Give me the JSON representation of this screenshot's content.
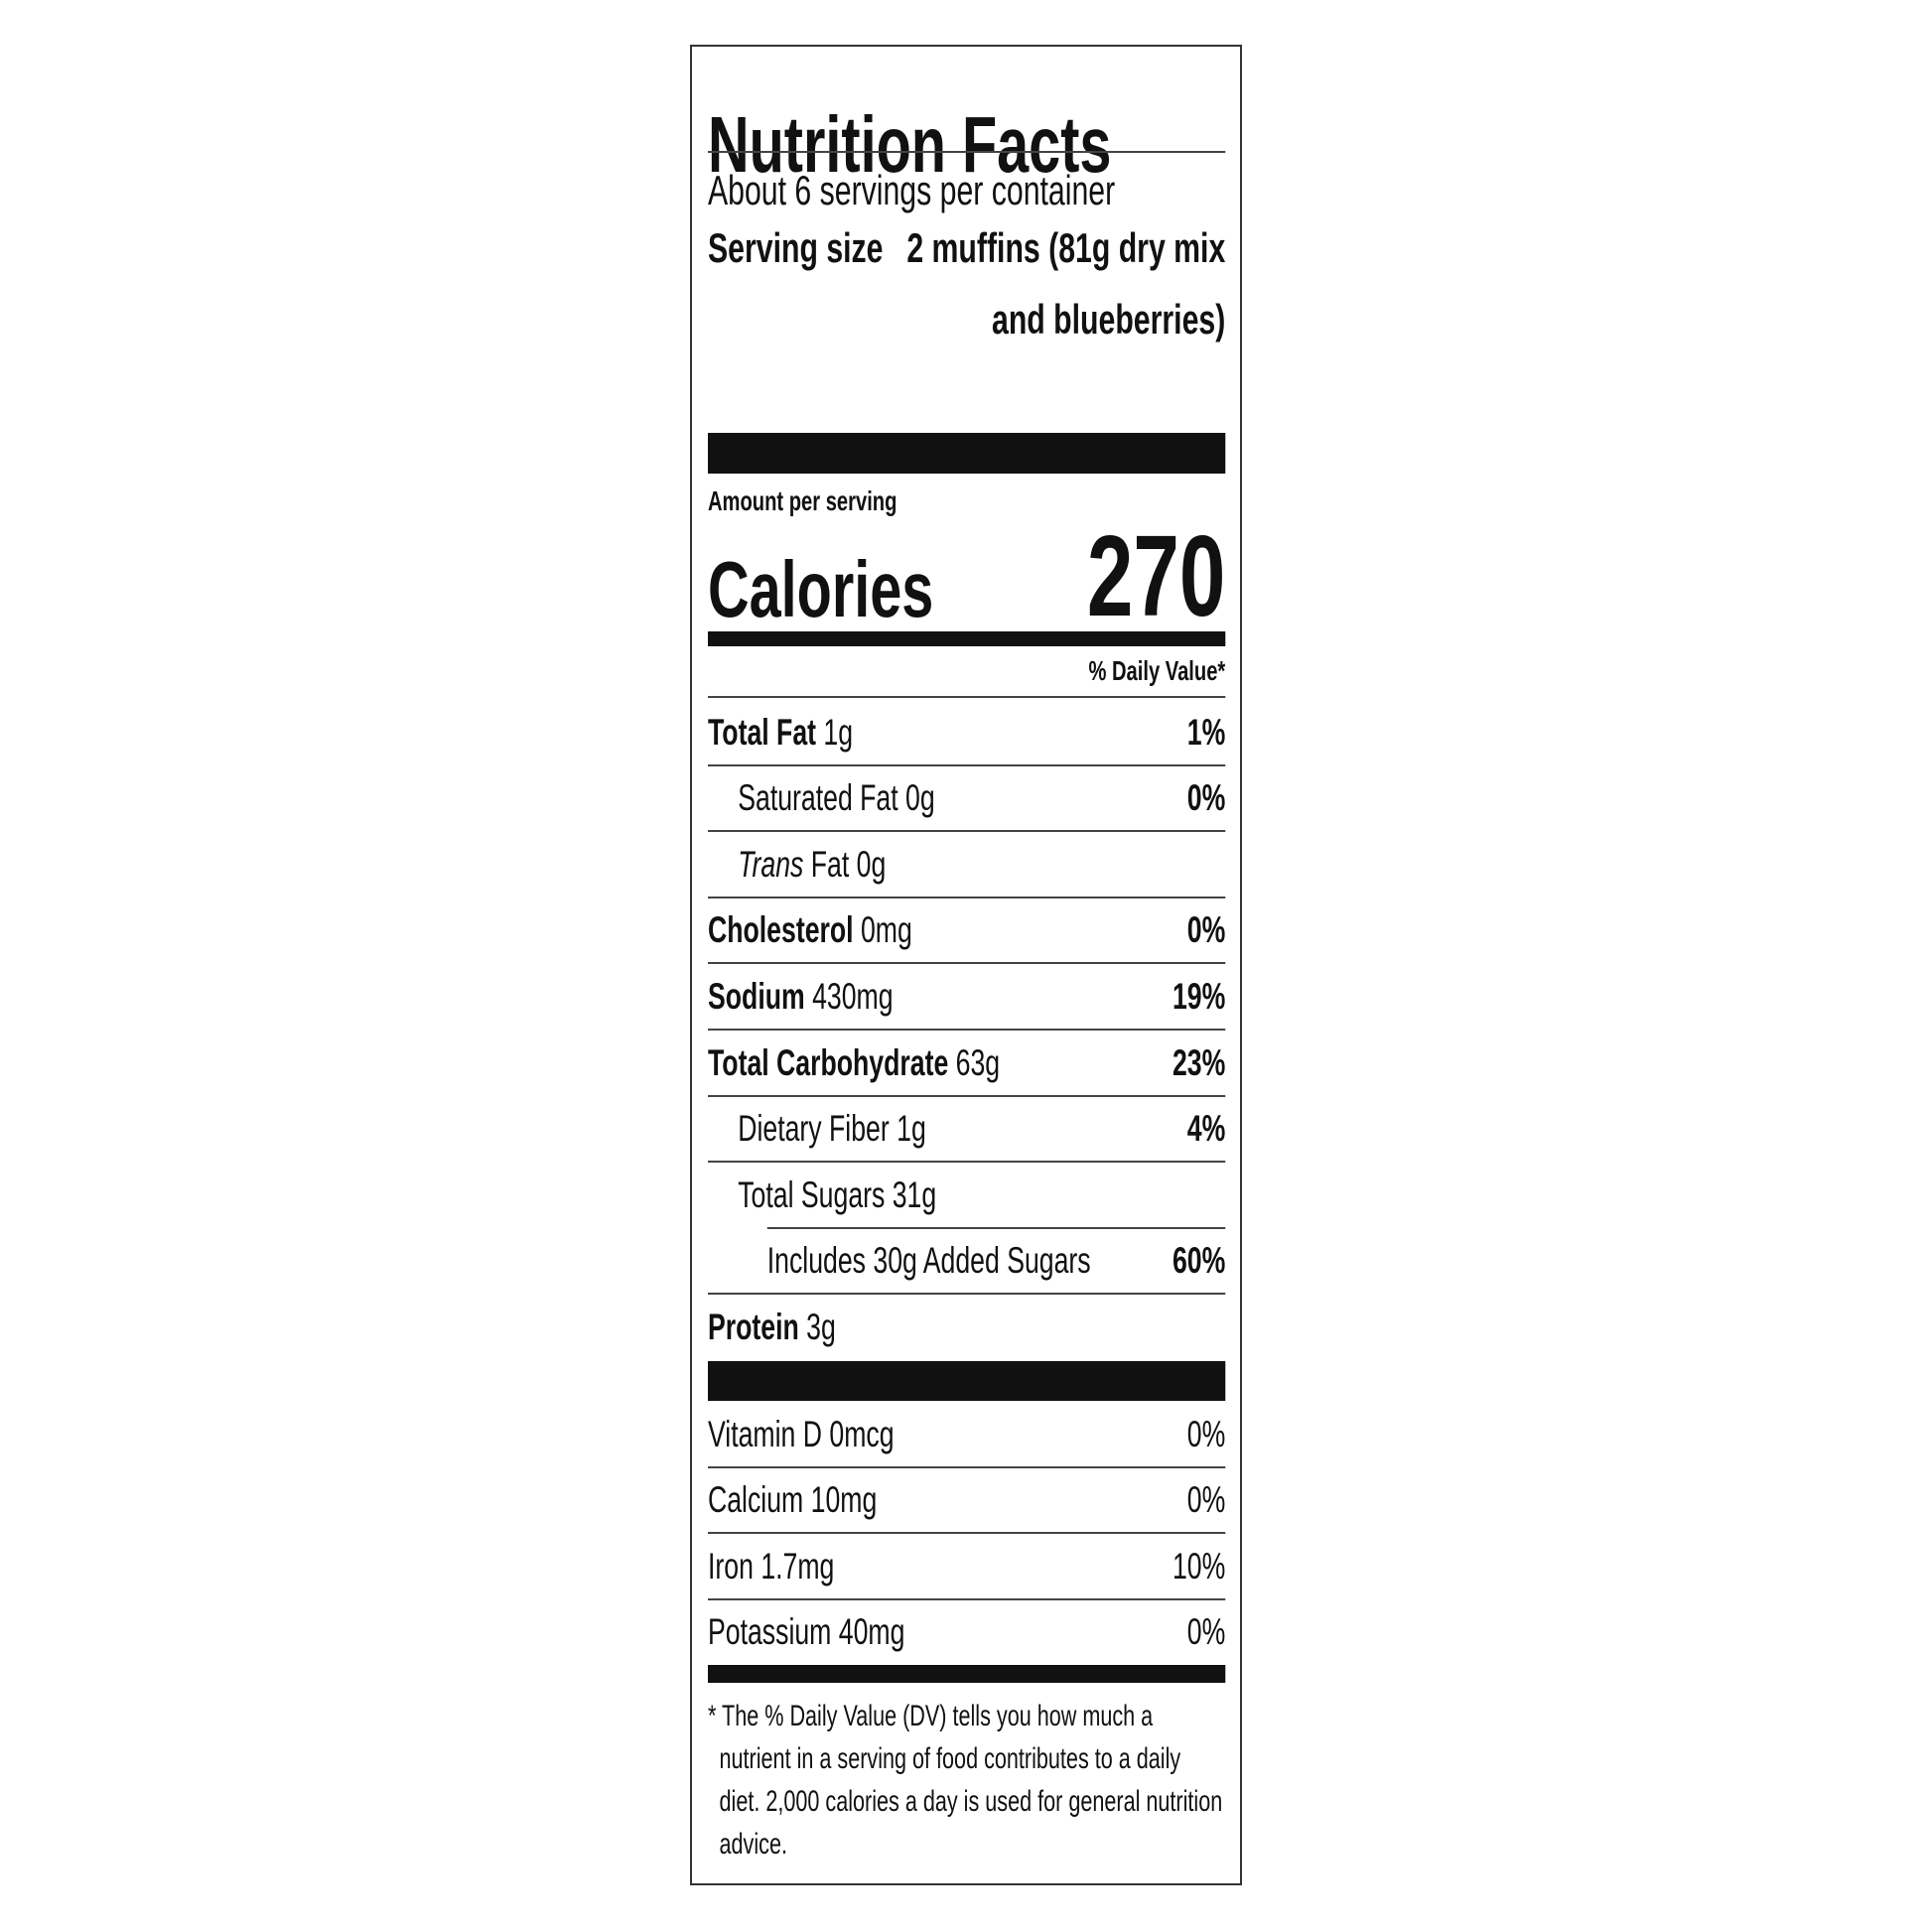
{
  "title": "Nutrition Facts",
  "servings": "About 6 servings per container",
  "serving_size": {
    "label": "Serving size",
    "value": "2 muffins (81g dry mix and blueberries)"
  },
  "amount_per_serving": "Amount per serving",
  "calories": {
    "label": "Calories",
    "value": 270
  },
  "daily_value_header": "% Daily Value*",
  "nutrients": [
    {
      "name": "Total Fat",
      "amount": "1g",
      "dv": "1%",
      "sub": [
        {
          "name": "Saturated Fat",
          "amount": "0g",
          "dv": "0%"
        },
        {
          "italic_prefix": "Trans",
          "name": "Fat",
          "amount": "0g"
        }
      ]
    },
    {
      "name": "Cholesterol",
      "amount": "0mg",
      "dv": "0%"
    },
    {
      "name": "Sodium",
      "amount": "430mg",
      "dv": "19%"
    },
    {
      "name": "Total Carbohydrate",
      "amount": "63g",
      "dv": "23%",
      "sub": [
        {
          "name": "Dietary Fiber",
          "amount": "1g",
          "dv": "4%"
        },
        {
          "name": "Total Sugars",
          "amount": "31g",
          "sub": [
            {
              "name": "Includes 30g Added Sugars",
              "dv": "60%"
            }
          ]
        }
      ]
    },
    {
      "name": "Protein",
      "amount": "3g"
    }
  ],
  "vitamins": [
    {
      "name": "Vitamin D",
      "amount": "0mcg",
      "dv": "0%"
    },
    {
      "name": "Calcium",
      "amount": "10mg",
      "dv": "0%"
    },
    {
      "name": "Iron",
      "amount": "1.7mg",
      "dv": "10%"
    },
    {
      "name": "Potassium",
      "amount": "40mg",
      "dv": "0%"
    }
  ],
  "footnote": "* The % Daily Value (DV) tells you how much a nutrient in a serving of food contributes to a daily diet. 2,000 calories a day is used for general nutrition advice."
}
